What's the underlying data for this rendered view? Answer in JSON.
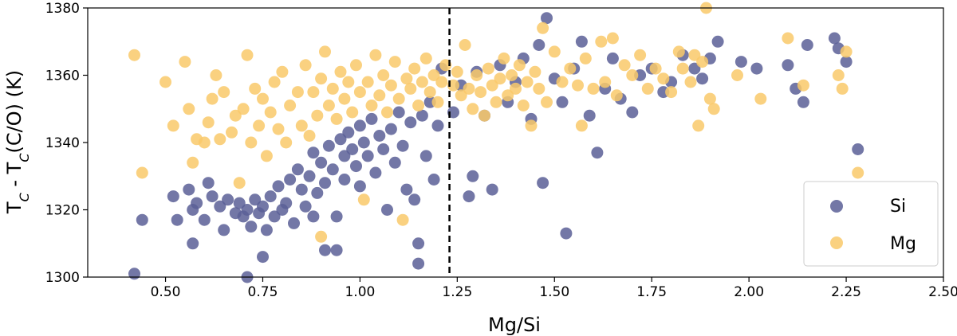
{
  "chart_data": {
    "type": "scatter",
    "xlabel": "Mg/Si",
    "ylabel_parts": [
      "T",
      "C",
      " - T",
      "C",
      "(C/O) (K)"
    ],
    "xlim": [
      0.3,
      2.5
    ],
    "ylim": [
      1300,
      1380
    ],
    "xticks": [
      0.5,
      0.75,
      1.0,
      1.25,
      1.5,
      1.75,
      2.0,
      2.25,
      2.5
    ],
    "xtick_labels": [
      "0.50",
      "0.75",
      "1.00",
      "1.25",
      "1.50",
      "1.75",
      "2.00",
      "2.25",
      "2.50"
    ],
    "yticks": [
      1300,
      1320,
      1340,
      1360,
      1380
    ],
    "ytick_labels": [
      "1300",
      "1320",
      "1340",
      "1360",
      "1380"
    ],
    "reference_line": {
      "x": 1.23,
      "style": "dashed",
      "color": "#000000"
    },
    "legend_location": "lower-right",
    "series": [
      {
        "name": "Si",
        "color": "#5b5f97",
        "points": [
          [
            0.42,
            1301
          ],
          [
            0.44,
            1317
          ],
          [
            0.52,
            1324
          ],
          [
            0.53,
            1317
          ],
          [
            0.56,
            1326
          ],
          [
            0.57,
            1310
          ],
          [
            0.57,
            1320
          ],
          [
            0.58,
            1322
          ],
          [
            0.6,
            1317
          ],
          [
            0.61,
            1328
          ],
          [
            0.62,
            1324
          ],
          [
            0.64,
            1321
          ],
          [
            0.65,
            1314
          ],
          [
            0.66,
            1323
          ],
          [
            0.68,
            1319
          ],
          [
            0.69,
            1322
          ],
          [
            0.7,
            1318
          ],
          [
            0.71,
            1320
          ],
          [
            0.71,
            1300
          ],
          [
            0.72,
            1315
          ],
          [
            0.73,
            1323
          ],
          [
            0.74,
            1319
          ],
          [
            0.75,
            1321
          ],
          [
            0.75,
            1306
          ],
          [
            0.76,
            1314
          ],
          [
            0.77,
            1324
          ],
          [
            0.78,
            1318
          ],
          [
            0.79,
            1327
          ],
          [
            0.8,
            1320
          ],
          [
            0.81,
            1322
          ],
          [
            0.82,
            1329
          ],
          [
            0.83,
            1316
          ],
          [
            0.84,
            1332
          ],
          [
            0.85,
            1326
          ],
          [
            0.86,
            1321
          ],
          [
            0.87,
            1330
          ],
          [
            0.88,
            1318
          ],
          [
            0.88,
            1337
          ],
          [
            0.89,
            1325
          ],
          [
            0.9,
            1334
          ],
          [
            0.91,
            1328
          ],
          [
            0.91,
            1308
          ],
          [
            0.92,
            1339
          ],
          [
            0.93,
            1332
          ],
          [
            0.94,
            1318
          ],
          [
            0.94,
            1308
          ],
          [
            0.95,
            1341
          ],
          [
            0.96,
            1336
          ],
          [
            0.96,
            1329
          ],
          [
            0.97,
            1343
          ],
          [
            0.98,
            1338
          ],
          [
            0.99,
            1333
          ],
          [
            1.0,
            1345
          ],
          [
            1.0,
            1327
          ],
          [
            1.01,
            1340
          ],
          [
            1.02,
            1336
          ],
          [
            1.03,
            1347
          ],
          [
            1.04,
            1331
          ],
          [
            1.05,
            1342
          ],
          [
            1.06,
            1338
          ],
          [
            1.07,
            1320
          ],
          [
            1.08,
            1344
          ],
          [
            1.09,
            1334
          ],
          [
            1.1,
            1349
          ],
          [
            1.11,
            1339
          ],
          [
            1.12,
            1326
          ],
          [
            1.13,
            1346
          ],
          [
            1.14,
            1323
          ],
          [
            1.15,
            1310
          ],
          [
            1.15,
            1304
          ],
          [
            1.16,
            1348
          ],
          [
            1.17,
            1336
          ],
          [
            1.18,
            1352
          ],
          [
            1.19,
            1329
          ],
          [
            1.2,
            1345
          ],
          [
            1.21,
            1362
          ],
          [
            1.24,
            1349
          ],
          [
            1.26,
            1357
          ],
          [
            1.28,
            1324
          ],
          [
            1.29,
            1330
          ],
          [
            1.3,
            1361
          ],
          [
            1.32,
            1348
          ],
          [
            1.34,
            1326
          ],
          [
            1.36,
            1363
          ],
          [
            1.38,
            1352
          ],
          [
            1.4,
            1358
          ],
          [
            1.42,
            1365
          ],
          [
            1.44,
            1347
          ],
          [
            1.46,
            1369
          ],
          [
            1.47,
            1328
          ],
          [
            1.48,
            1377
          ],
          [
            1.5,
            1359
          ],
          [
            1.52,
            1352
          ],
          [
            1.53,
            1313
          ],
          [
            1.55,
            1362
          ],
          [
            1.57,
            1370
          ],
          [
            1.59,
            1348
          ],
          [
            1.61,
            1337
          ],
          [
            1.63,
            1356
          ],
          [
            1.65,
            1365
          ],
          [
            1.67,
            1353
          ],
          [
            1.7,
            1349
          ],
          [
            1.72,
            1360
          ],
          [
            1.75,
            1362
          ],
          [
            1.78,
            1355
          ],
          [
            1.8,
            1358
          ],
          [
            1.83,
            1366
          ],
          [
            1.86,
            1362
          ],
          [
            1.88,
            1359
          ],
          [
            1.9,
            1365
          ],
          [
            1.92,
            1370
          ],
          [
            1.98,
            1364
          ],
          [
            2.02,
            1362
          ],
          [
            2.1,
            1363
          ],
          [
            2.12,
            1356
          ],
          [
            2.14,
            1352
          ],
          [
            2.15,
            1369
          ],
          [
            2.22,
            1371
          ],
          [
            2.23,
            1368
          ],
          [
            2.25,
            1364
          ],
          [
            2.28,
            1338
          ]
        ]
      },
      {
        "name": "Mg",
        "color": "#f9c96a",
        "points": [
          [
            0.42,
            1366
          ],
          [
            0.44,
            1331
          ],
          [
            0.5,
            1358
          ],
          [
            0.52,
            1345
          ],
          [
            0.55,
            1364
          ],
          [
            0.56,
            1350
          ],
          [
            0.57,
            1334
          ],
          [
            0.58,
            1341
          ],
          [
            0.6,
            1340
          ],
          [
            0.61,
            1346
          ],
          [
            0.62,
            1353
          ],
          [
            0.63,
            1360
          ],
          [
            0.64,
            1341
          ],
          [
            0.65,
            1355
          ],
          [
            0.67,
            1343
          ],
          [
            0.68,
            1348
          ],
          [
            0.69,
            1328
          ],
          [
            0.7,
            1350
          ],
          [
            0.71,
            1366
          ],
          [
            0.72,
            1340
          ],
          [
            0.73,
            1356
          ],
          [
            0.74,
            1345
          ],
          [
            0.75,
            1353
          ],
          [
            0.76,
            1336
          ],
          [
            0.77,
            1349
          ],
          [
            0.78,
            1358
          ],
          [
            0.79,
            1344
          ],
          [
            0.8,
            1361
          ],
          [
            0.81,
            1340
          ],
          [
            0.82,
            1351
          ],
          [
            0.84,
            1355
          ],
          [
            0.85,
            1345
          ],
          [
            0.86,
            1363
          ],
          [
            0.87,
            1342
          ],
          [
            0.88,
            1355
          ],
          [
            0.89,
            1348
          ],
          [
            0.9,
            1359
          ],
          [
            0.9,
            1312
          ],
          [
            0.91,
            1367
          ],
          [
            0.92,
            1351
          ],
          [
            0.93,
            1356
          ],
          [
            0.94,
            1347
          ],
          [
            0.95,
            1361
          ],
          [
            0.96,
            1353
          ],
          [
            0.97,
            1358
          ],
          [
            0.98,
            1349
          ],
          [
            0.99,
            1363
          ],
          [
            1.0,
            1355
          ],
          [
            1.01,
            1323
          ],
          [
            1.02,
            1358
          ],
          [
            1.03,
            1351
          ],
          [
            1.04,
            1366
          ],
          [
            1.05,
            1354
          ],
          [
            1.06,
            1360
          ],
          [
            1.07,
            1349
          ],
          [
            1.08,
            1357
          ],
          [
            1.09,
            1364
          ],
          [
            1.1,
            1353
          ],
          [
            1.11,
            1317
          ],
          [
            1.12,
            1359
          ],
          [
            1.13,
            1356
          ],
          [
            1.14,
            1362
          ],
          [
            1.15,
            1351
          ],
          [
            1.16,
            1358
          ],
          [
            1.17,
            1365
          ],
          [
            1.18,
            1355
          ],
          [
            1.19,
            1360
          ],
          [
            1.2,
            1352
          ],
          [
            1.21,
            1358
          ],
          [
            1.22,
            1363
          ],
          [
            1.24,
            1357
          ],
          [
            1.25,
            1361
          ],
          [
            1.26,
            1354
          ],
          [
            1.27,
            1369
          ],
          [
            1.28,
            1356
          ],
          [
            1.29,
            1350
          ],
          [
            1.3,
            1360
          ],
          [
            1.31,
            1355
          ],
          [
            1.32,
            1348
          ],
          [
            1.33,
            1362
          ],
          [
            1.34,
            1357
          ],
          [
            1.35,
            1352
          ],
          [
            1.36,
            1359
          ],
          [
            1.37,
            1365
          ],
          [
            1.38,
            1354
          ],
          [
            1.39,
            1360
          ],
          [
            1.4,
            1356
          ],
          [
            1.41,
            1363
          ],
          [
            1.42,
            1351
          ],
          [
            1.43,
            1358
          ],
          [
            1.44,
            1345
          ],
          [
            1.45,
            1361
          ],
          [
            1.46,
            1356
          ],
          [
            1.47,
            1374
          ],
          [
            1.48,
            1352
          ],
          [
            1.5,
            1367
          ],
          [
            1.52,
            1358
          ],
          [
            1.54,
            1362
          ],
          [
            1.56,
            1357
          ],
          [
            1.57,
            1345
          ],
          [
            1.58,
            1365
          ],
          [
            1.6,
            1356
          ],
          [
            1.62,
            1370
          ],
          [
            1.63,
            1358
          ],
          [
            1.65,
            1371
          ],
          [
            1.66,
            1354
          ],
          [
            1.68,
            1363
          ],
          [
            1.7,
            1360
          ],
          [
            1.72,
            1366
          ],
          [
            1.74,
            1356
          ],
          [
            1.76,
            1362
          ],
          [
            1.78,
            1359
          ],
          [
            1.8,
            1355
          ],
          [
            1.82,
            1367
          ],
          [
            1.83,
            1362
          ],
          [
            1.85,
            1358
          ],
          [
            1.86,
            1366
          ],
          [
            1.87,
            1345
          ],
          [
            1.88,
            1364
          ],
          [
            1.89,
            1380
          ],
          [
            1.9,
            1353
          ],
          [
            1.91,
            1350
          ],
          [
            1.97,
            1360
          ],
          [
            2.03,
            1353
          ],
          [
            2.1,
            1371
          ],
          [
            2.14,
            1357
          ],
          [
            2.23,
            1360
          ],
          [
            2.24,
            1356
          ],
          [
            2.25,
            1367
          ],
          [
            2.28,
            1331
          ]
        ]
      }
    ]
  }
}
